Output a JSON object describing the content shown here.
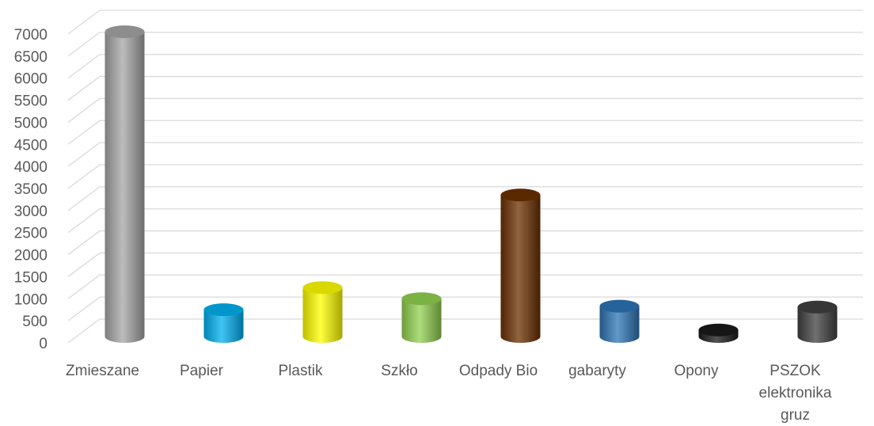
{
  "chart_data": {
    "type": "bar",
    "style": "3d-cylinder",
    "title": "",
    "xlabel": "",
    "ylabel": "",
    "ylim": [
      0,
      7000
    ],
    "yticks": [
      0,
      500,
      1000,
      1500,
      2000,
      2500,
      3000,
      3500,
      4000,
      4500,
      5000,
      5500,
      6000,
      6500,
      7000
    ],
    "grid": true,
    "legend": "none",
    "categories": [
      [
        "Zmieszane"
      ],
      [
        "Papier"
      ],
      [
        "Plastik"
      ],
      [
        "Szkło"
      ],
      [
        "Odpady Bio"
      ],
      [
        "gabaryty"
      ],
      [
        "Opony"
      ],
      [
        "PSZOK",
        "elektronika",
        "gruz"
      ]
    ],
    "values": [
      6800,
      500,
      1000,
      750,
      3100,
      580,
      40,
      560
    ],
    "colors": [
      "#a6a6a6",
      "#00b0f0",
      "#ffff00",
      "#92d050",
      "#6b3000",
      "#2e75b6",
      "#1a1a1a",
      "#404040"
    ]
  }
}
